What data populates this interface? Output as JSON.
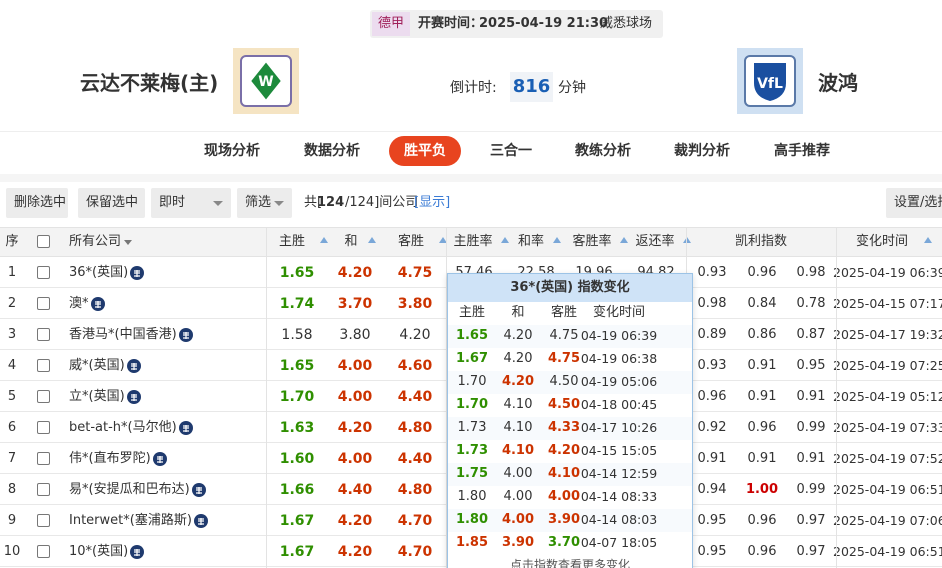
{
  "header": {
    "league": "德甲",
    "kickoff_label": "开赛时间：",
    "kickoff": "2025-04-19 21:30",
    "venue": "威悉球场",
    "home": "云达不莱梅(主)",
    "away": "波鸿",
    "countdown_label": "倒计时:",
    "countdown": "816",
    "countdown_unit": "分钟"
  },
  "nav": {
    "items": [
      "现场分析",
      "数据分析",
      "胜平负",
      "三合一",
      "教练分析",
      "裁判分析",
      "高手推荐"
    ],
    "active": 2
  },
  "toolbar": {
    "buttons": [
      "删除选中",
      "保留选中"
    ],
    "mode": "即时",
    "filter": "筛选",
    "count_prefix": "共[",
    "count": "124",
    "count_suffix": "/124]间公司",
    "show": "[显示]",
    "settings": "设置/选择"
  },
  "table": {
    "columns": {
      "no": "序",
      "company": "所有公司",
      "home": "主胜",
      "draw": "和",
      "away": "客胜",
      "home_rate": "主胜率",
      "draw_rate": "和率",
      "away_rate": "客胜率",
      "return_rate": "返还率",
      "kelly": "凯利指数",
      "time": "变化时间"
    },
    "rows": [
      {
        "no": "1",
        "company": "36*(英国)",
        "odds": [
          "1.65",
          "4.20",
          "4.75"
        ],
        "colors": [
          "#2f8f00",
          "#cc3300",
          "#cc3300"
        ],
        "rates": [
          "57.46",
          "22.58",
          "19.96",
          "94.82"
        ],
        "kelly": [
          "0.93",
          "0.96",
          "0.98"
        ],
        "time": "2025-04-19 06:39"
      },
      {
        "no": "2",
        "company": "澳*",
        "odds": [
          "1.74",
          "3.70",
          "3.80"
        ],
        "colors": [
          "#2f8f00",
          "#cc3300",
          "#cc3300"
        ],
        "kelly": [
          "0.98",
          "0.84",
          "0.78"
        ],
        "time": "2025-04-15 07:17"
      },
      {
        "no": "3",
        "company": "香港马*(中国香港)",
        "odds": [
          "1.58",
          "3.80",
          "4.20"
        ],
        "colors": [
          "#333333",
          "#333333",
          "#333333"
        ],
        "kelly": [
          "0.89",
          "0.86",
          "0.87"
        ],
        "time": "2025-04-17 19:32"
      },
      {
        "no": "4",
        "company": "威*(英国)",
        "odds": [
          "1.65",
          "4.00",
          "4.60"
        ],
        "colors": [
          "#2f8f00",
          "#cc3300",
          "#cc3300"
        ],
        "kelly": [
          "0.93",
          "0.91",
          "0.95"
        ],
        "time": "2025-04-19 07:25"
      },
      {
        "no": "5",
        "company": "立*(英国)",
        "odds": [
          "1.70",
          "4.00",
          "4.40"
        ],
        "colors": [
          "#2f8f00",
          "#cc3300",
          "#cc3300"
        ],
        "kelly": [
          "0.96",
          "0.91",
          "0.91"
        ],
        "time": "2025-04-19 05:12"
      },
      {
        "no": "6",
        "company": "bet-at-h*(马尔他)",
        "odds": [
          "1.63",
          "4.20",
          "4.80"
        ],
        "colors": [
          "#2f8f00",
          "#cc3300",
          "#cc3300"
        ],
        "kelly": [
          "0.92",
          "0.96",
          "0.99"
        ],
        "time": "2025-04-19 07:33"
      },
      {
        "no": "7",
        "company": "伟*(直布罗陀)",
        "odds": [
          "1.60",
          "4.00",
          "4.40"
        ],
        "colors": [
          "#2f8f00",
          "#cc3300",
          "#cc3300"
        ],
        "kelly": [
          "0.91",
          "0.91",
          "0.91"
        ],
        "time": "2025-04-19 07:52"
      },
      {
        "no": "8",
        "company": "易*(安提瓜和巴布达)",
        "odds": [
          "1.66",
          "4.40",
          "4.80"
        ],
        "colors": [
          "#2f8f00",
          "#cc3300",
          "#cc3300"
        ],
        "kelly": [
          "0.94",
          "1.00",
          "0.99"
        ],
        "kelly_colors": [
          "#333333",
          "#cc0000",
          "#333333"
        ],
        "time": "2025-04-19 06:51"
      },
      {
        "no": "9",
        "company": "Interwet*(塞浦路斯)",
        "odds": [
          "1.67",
          "4.20",
          "4.70"
        ],
        "colors": [
          "#2f8f00",
          "#cc3300",
          "#cc3300"
        ],
        "kelly": [
          "0.95",
          "0.96",
          "0.97"
        ],
        "time": "2025-04-19 07:06"
      },
      {
        "no": "10",
        "company": "10*(英国)",
        "odds": [
          "1.67",
          "4.20",
          "4.70"
        ],
        "colors": [
          "#2f8f00",
          "#cc3300",
          "#cc3300"
        ],
        "kelly": [
          "0.95",
          "0.96",
          "0.97"
        ],
        "time": "2025-04-19 06:51"
      }
    ]
  },
  "popup": {
    "title": "36*(英国) 指数变化",
    "columns": [
      "主胜",
      "和",
      "客胜",
      "变化时间"
    ],
    "rows": [
      {
        "odds": [
          "1.65",
          "4.20",
          "4.75"
        ],
        "colors": [
          "#2f8f00",
          "#333333",
          "#333333"
        ],
        "time": "04-19 06:39"
      },
      {
        "odds": [
          "1.67",
          "4.20",
          "4.75"
        ],
        "colors": [
          "#2f8f00",
          "#333333",
          "#cc3300"
        ],
        "time": "04-19 06:38"
      },
      {
        "odds": [
          "1.70",
          "4.20",
          "4.50"
        ],
        "colors": [
          "#333333",
          "#cc3300",
          "#333333"
        ],
        "time": "04-19 05:06"
      },
      {
        "odds": [
          "1.70",
          "4.10",
          "4.50"
        ],
        "colors": [
          "#2f8f00",
          "#333333",
          "#cc3300"
        ],
        "time": "04-18 00:45"
      },
      {
        "odds": [
          "1.73",
          "4.10",
          "4.33"
        ],
        "colors": [
          "#333333",
          "#333333",
          "#cc3300"
        ],
        "time": "04-17 10:26"
      },
      {
        "odds": [
          "1.73",
          "4.10",
          "4.20"
        ],
        "colors": [
          "#2f8f00",
          "#cc3300",
          "#cc3300"
        ],
        "time": "04-15 15:05"
      },
      {
        "odds": [
          "1.75",
          "4.00",
          "4.10"
        ],
        "colors": [
          "#2f8f00",
          "#333333",
          "#cc3300"
        ],
        "time": "04-14 12:59"
      },
      {
        "odds": [
          "1.80",
          "4.00",
          "4.00"
        ],
        "colors": [
          "#333333",
          "#333333",
          "#cc3300"
        ],
        "time": "04-14 08:33"
      },
      {
        "odds": [
          "1.80",
          "4.00",
          "3.90"
        ],
        "colors": [
          "#2f8f00",
          "#cc3300",
          "#cc3300"
        ],
        "time": "04-14 08:03"
      },
      {
        "odds": [
          "1.85",
          "3.90",
          "3.70"
        ],
        "colors": [
          "#cc3300",
          "#cc3300",
          "#2f8f00"
        ],
        "time": "04-07 18:05"
      }
    ],
    "footer": "点击指数查看更多变化"
  }
}
